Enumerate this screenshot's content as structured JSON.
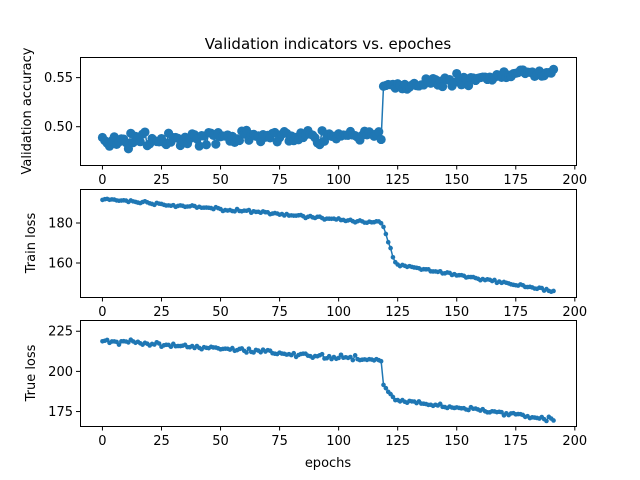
{
  "figure": {
    "title": "Validation indicators vs. epoches"
  },
  "chart_data": [
    {
      "type": "line",
      "ylabel": "Validation accuracy",
      "xlabel": "",
      "xlim": [
        -9.5,
        200.5
      ],
      "ylim": [
        0.461,
        0.571
      ],
      "x_ticks": [
        0,
        25,
        50,
        75,
        100,
        125,
        150,
        175,
        200
      ],
      "y_ticks": [
        0.5,
        0.55
      ],
      "grid": false,
      "color": "#1f77b4",
      "marker": "large-circle",
      "segments": [
        {
          "x0": 0,
          "x1": 118,
          "base_start": 0.485,
          "base_end": 0.493,
          "noise": 0.011
        },
        {
          "x0": 119,
          "x1": 191,
          "base_start": 0.54,
          "base_end": 0.557,
          "noise": 0.009
        }
      ]
    },
    {
      "type": "line",
      "ylabel": "Train loss",
      "xlabel": "",
      "xlim": [
        -9.5,
        200.5
      ],
      "ylim": [
        143,
        197
      ],
      "x_ticks": [
        0,
        25,
        50,
        75,
        100,
        125,
        150,
        175,
        200
      ],
      "y_ticks": [
        160,
        180
      ],
      "grid": false,
      "color": "#1f77b4",
      "marker": "small-circle",
      "segments": [
        {
          "x0": 0,
          "x1": 118,
          "base_start": 192,
          "base_end": 180,
          "noise": 1.2
        },
        {
          "x0": 119,
          "x1": 124,
          "base_start": 178,
          "base_end": 160,
          "noise": 1.0
        },
        {
          "x0": 125,
          "x1": 191,
          "base_start": 159,
          "base_end": 146,
          "noise": 1.0
        }
      ]
    },
    {
      "type": "line",
      "ylabel": "True loss",
      "xlabel": "epochs",
      "xlim": [
        -9.5,
        200.5
      ],
      "ylim": [
        166,
        232
      ],
      "x_ticks": [
        0,
        25,
        50,
        75,
        100,
        125,
        150,
        175,
        200
      ],
      "y_ticks": [
        175,
        200,
        225
      ],
      "grid": false,
      "color": "#1f77b4",
      "marker": "small-circle",
      "segments": [
        {
          "x0": 0,
          "x1": 118,
          "base_start": 219,
          "base_end": 207,
          "noise": 2.2
        },
        {
          "x0": 119,
          "x1": 124,
          "base_start": 192,
          "base_end": 183,
          "noise": 2.0
        },
        {
          "x0": 125,
          "x1": 191,
          "base_start": 182,
          "base_end": 170,
          "noise": 2.0
        }
      ]
    }
  ]
}
